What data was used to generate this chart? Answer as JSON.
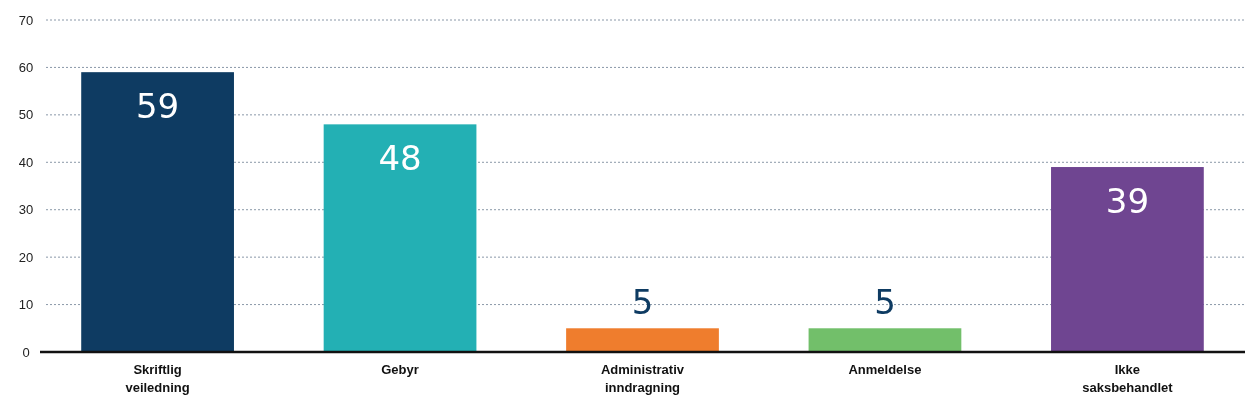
{
  "chart_data": {
    "type": "bar",
    "categories": [
      "Skriftlig veiledning",
      "Gebyr",
      "Administrativ inndragning",
      "Anmeldelse",
      "Ikke saksbehandlet"
    ],
    "values": [
      59,
      48,
      5,
      5,
      39
    ],
    "colors": [
      "#0e3b62",
      "#23b0b4",
      "#ef7d2d",
      "#72bf6a",
      "#6f4591"
    ],
    "ylim": [
      0,
      70
    ],
    "yticks": [
      0,
      10,
      20,
      30,
      40,
      50,
      60,
      70
    ],
    "grid": "y",
    "data_labels": true
  }
}
